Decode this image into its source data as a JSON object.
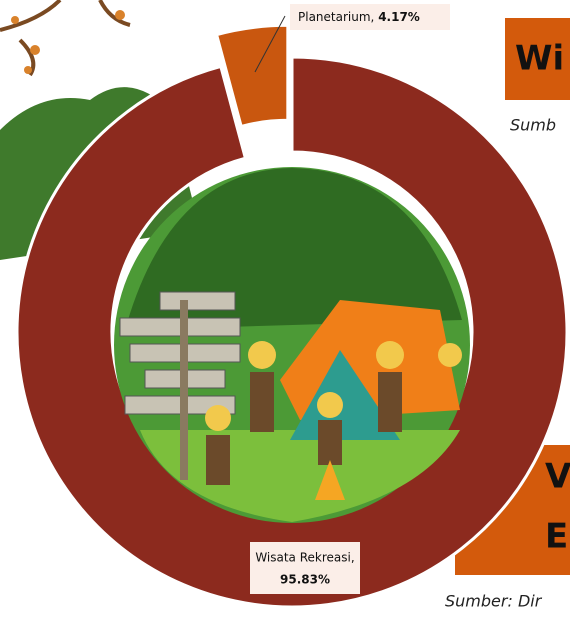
{
  "chart_data": {
    "type": "donut",
    "categories": [
      "Planetarium,",
      "Wisata Rekreasi,"
    ],
    "values": [
      4.17,
      95.83
    ],
    "value_labels": [
      "4.17%",
      "95.83%"
    ],
    "colors": [
      "#c9570f",
      "#8c2a1e"
    ],
    "exploded": [
      true,
      false
    ]
  },
  "cropped_texts": {
    "title_top": "Wi",
    "source_top": "Sumb",
    "title_bottom_1": "V",
    "title_bottom_2": "E",
    "source_bottom": "Sumber: Dir"
  }
}
